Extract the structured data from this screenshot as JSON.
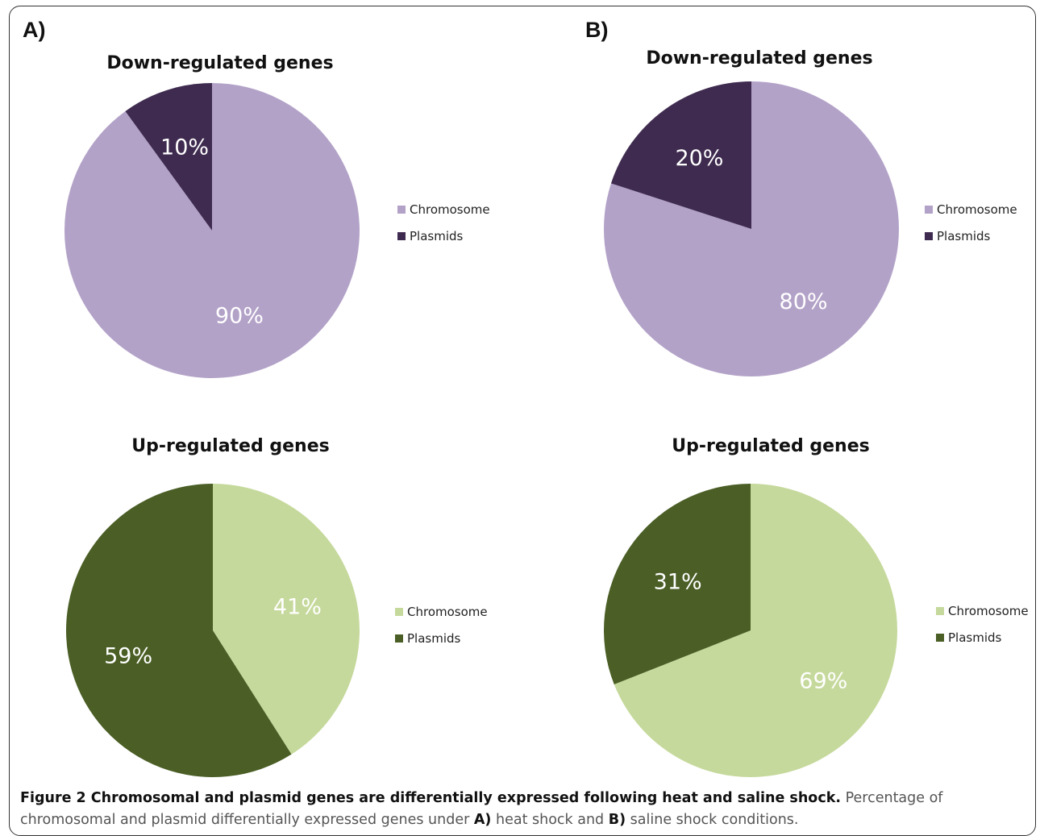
{
  "panels": {
    "a_label": "A)",
    "b_label": "B)"
  },
  "chart_data": [
    {
      "type": "pie",
      "title": "Down-regulated genes",
      "categories": [
        "Chromosome",
        "Plasmids"
      ],
      "values": [
        90,
        10
      ],
      "labels": [
        "90%",
        "10%"
      ],
      "colors": [
        "#b3a2c8",
        "#3f2b4f"
      ],
      "legend": "right"
    },
    {
      "type": "pie",
      "title": "Down-regulated genes",
      "categories": [
        "Chromosome",
        "Plasmids"
      ],
      "values": [
        80,
        20
      ],
      "labels": [
        "80%",
        "20%"
      ],
      "colors": [
        "#b3a2c8",
        "#3f2b4f"
      ],
      "legend": "right"
    },
    {
      "type": "pie",
      "title": "Up-regulated genes",
      "categories": [
        "Chromosome",
        "Plasmids"
      ],
      "values": [
        41,
        59
      ],
      "labels": [
        "41%",
        "59%"
      ],
      "colors": [
        "#c6d99c",
        "#4a5e25"
      ],
      "legend": "right"
    },
    {
      "type": "pie",
      "title": "Up-regulated genes",
      "categories": [
        "Chromosome",
        "Plasmids"
      ],
      "values": [
        69,
        31
      ],
      "labels": [
        "69%",
        "31%"
      ],
      "colors": [
        "#c6d99c",
        "#4a5e25"
      ],
      "legend": "right"
    }
  ],
  "caption": {
    "bold": "Figure 2 Chromosomal and plasmid genes are differentially expressed following heat and saline shock.",
    "text1": "Percentage of chromosomal and plasmid differentially expressed genes under",
    "a": "A)",
    "text2": "heat shock and",
    "b": "B)",
    "text3": "saline shock conditions."
  }
}
